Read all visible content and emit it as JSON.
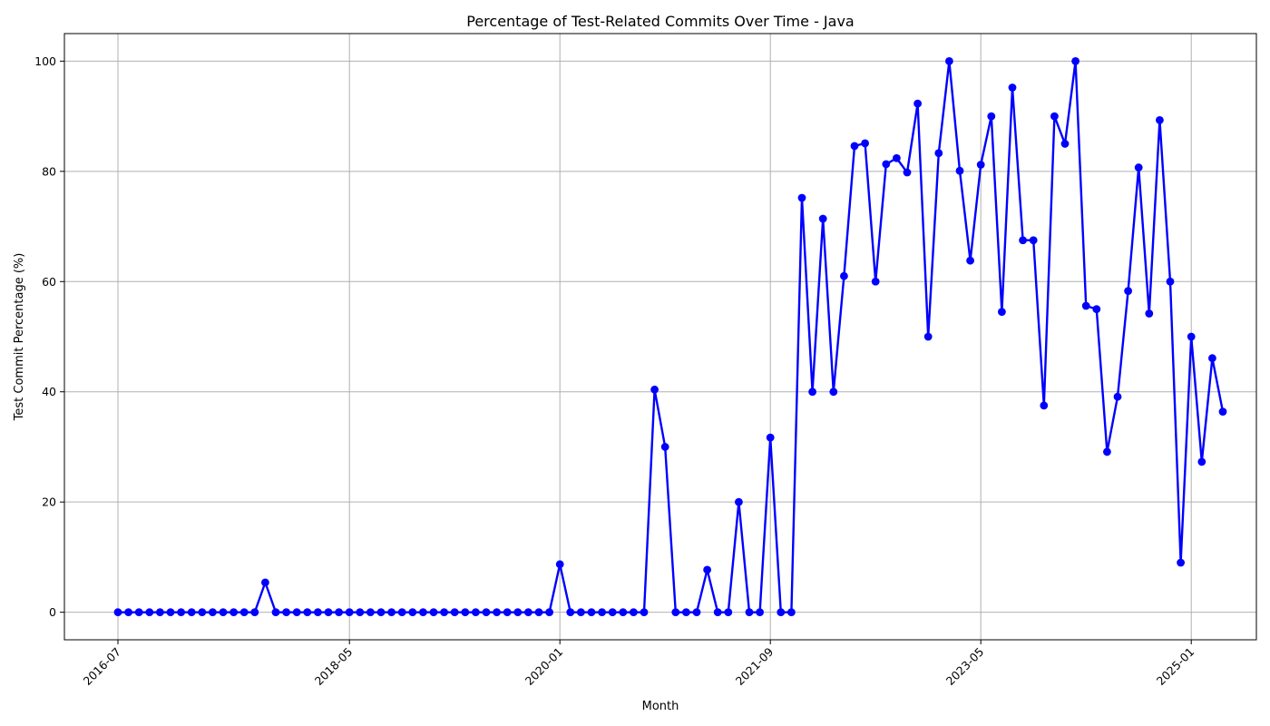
{
  "chart_data": {
    "type": "line",
    "title": "Percentage of Test-Related Commits Over Time - Java",
    "xlabel": "Month",
    "ylabel": "Test Commit Percentage (%)",
    "x_start": "2016-07",
    "x_interval": "monthly",
    "xticks": [
      "2016-07",
      "2018-05",
      "2020-01",
      "2021-09",
      "2023-05",
      "2025-01"
    ],
    "yticks": [
      0,
      20,
      40,
      60,
      80,
      100
    ],
    "ylim": [
      -5,
      105
    ],
    "grid": true,
    "legend": "none",
    "color": "#0000ff",
    "series": [
      {
        "values": [
          0,
          0,
          0,
          0,
          0,
          0,
          0,
          0,
          0,
          0,
          0,
          0,
          0,
          0,
          5.4,
          0,
          0,
          0,
          0,
          0,
          0,
          0,
          0,
          0,
          0,
          0,
          0,
          0,
          0,
          0,
          0,
          0,
          0,
          0,
          0,
          0,
          0,
          0,
          0,
          0,
          0,
          0,
          8.7,
          0,
          0,
          0,
          0,
          0,
          0,
          0,
          0,
          40.4,
          30,
          0,
          0,
          0,
          7.7,
          0,
          0,
          20,
          0,
          0,
          31.7,
          0,
          0,
          75.2,
          40,
          71.4,
          40,
          61,
          84.6,
          85.1,
          60,
          81.3,
          82.4,
          79.8,
          92.3,
          50,
          83.3,
          100,
          80.1,
          63.8,
          81.2,
          90,
          54.5,
          95.2,
          67.5,
          67.5,
          37.5,
          90,
          85,
          100,
          55.6,
          55,
          29.1,
          39.1,
          58.3,
          80.7,
          54.2,
          89.3,
          60,
          9,
          50,
          27.3,
          46.1,
          36.4
        ]
      }
    ]
  }
}
